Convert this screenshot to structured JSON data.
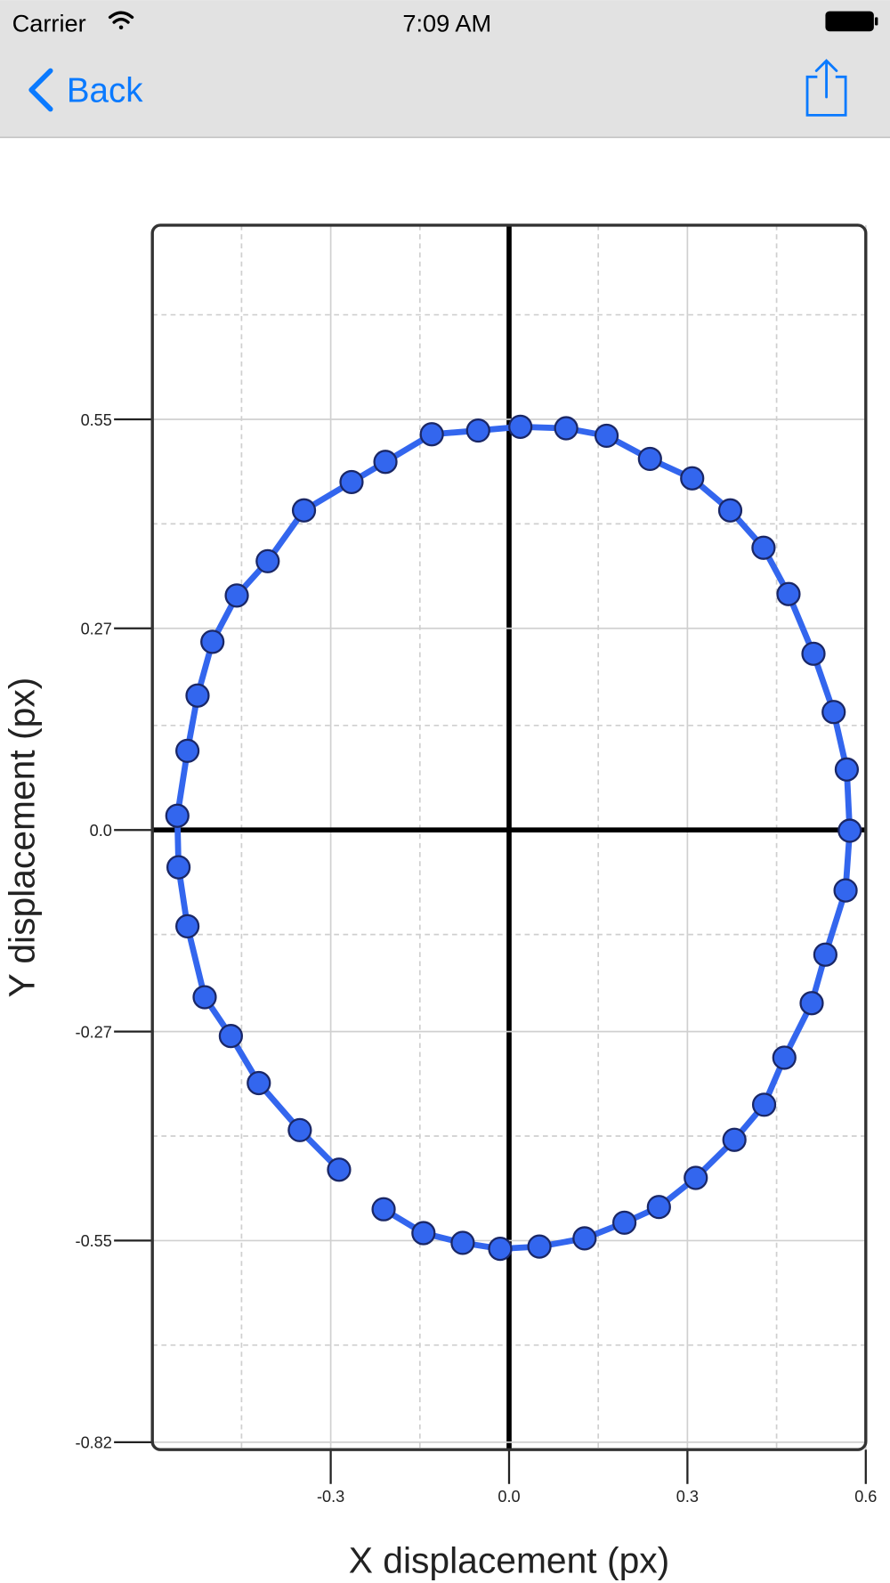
{
  "status_bar": {
    "carrier": "Carrier",
    "time": "7:09 AM"
  },
  "nav": {
    "back": "Back"
  },
  "chart_data": {
    "type": "scatter",
    "x_label": "X displacement (px)",
    "y_label": "Y displacement (px)",
    "xlim": [
      -0.6,
      0.6
    ],
    "ylim": [
      -0.83,
      0.81
    ],
    "xticks": [
      -0.3,
      {
        "value": 0,
        "label": "0.0"
      },
      0.3,
      0.6
    ],
    "yticks": [
      0.55,
      0.27,
      {
        "value": 0,
        "label": "0.0"
      },
      -0.27,
      -0.55,
      -0.82
    ],
    "x_minor_ticks": [
      -0.45,
      -0.15,
      0.15,
      0.45
    ],
    "y_minor_ticks": [
      0.69,
      0.41,
      0.14,
      -0.14,
      -0.41,
      -0.69
    ],
    "grid": true,
    "series": [
      {
        "color": "#3366ee",
        "x": [
          -0.211,
          -0.144,
          -0.078,
          -0.015,
          0.051,
          0.127,
          0.194,
          0.252,
          0.314,
          0.379,
          0.429,
          0.463,
          0.509,
          0.532,
          0.566,
          0.573,
          0.568,
          0.546,
          0.512,
          0.47,
          0.428,
          0.372,
          0.308,
          0.237,
          0.164,
          0.096,
          0.019,
          -0.052,
          -0.13,
          -0.208,
          -0.265,
          -0.345,
          -0.406,
          -0.458,
          -0.499,
          -0.524,
          -0.541,
          -0.558,
          -0.556,
          -0.541,
          -0.512,
          -0.468,
          -0.421,
          -0.352,
          -0.286
        ],
        "values": [
          -0.508,
          -0.54,
          -0.553,
          -0.561,
          -0.558,
          -0.547,
          -0.526,
          -0.505,
          -0.466,
          -0.415,
          -0.368,
          -0.305,
          -0.232,
          -0.167,
          -0.081,
          -0.001,
          0.081,
          0.158,
          0.236,
          0.316,
          0.378,
          0.428,
          0.471,
          0.497,
          0.528,
          0.538,
          0.54,
          0.535,
          0.53,
          0.493,
          0.466,
          0.428,
          0.36,
          0.314,
          0.252,
          0.18,
          0.106,
          0.019,
          -0.05,
          -0.129,
          -0.224,
          -0.276,
          -0.339,
          -0.402,
          -0.455
        ]
      }
    ]
  }
}
